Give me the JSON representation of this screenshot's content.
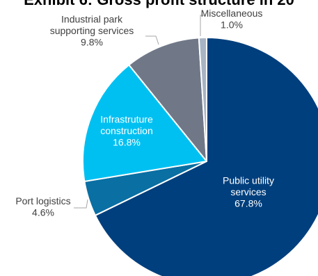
{
  "chart_data": {
    "type": "pie",
    "title": "Exhibit 6: Gross profit structure in 20",
    "legend": "none",
    "slices": [
      {
        "name": "Public utility services",
        "label_lines": [
          "Public utility",
          "services"
        ],
        "value": 67.8,
        "value_label": "67.8%",
        "color": "#003f7d",
        "text_color": "#ffffff",
        "label_position": "inside"
      },
      {
        "name": "Port logistics",
        "label_lines": [
          "Port logistics"
        ],
        "value": 4.6,
        "value_label": "4.6%",
        "color": "#0a6fa3",
        "text_color": "#404040",
        "label_position": "outside-left"
      },
      {
        "name": "Infrastruture construction",
        "label_lines": [
          "Infrastruture",
          "construction"
        ],
        "value": 16.8,
        "value_label": "16.8%",
        "color": "#00c0f2",
        "text_color": "#ffffff",
        "label_position": "inside"
      },
      {
        "name": "Industrial park supporting services",
        "label_lines": [
          "Industrial park",
          "supporting services"
        ],
        "value": 9.8,
        "value_label": "9.8%",
        "color": "#707888",
        "text_color": "#404040",
        "label_position": "outside-top"
      },
      {
        "name": "Miscellaneous",
        "label_lines": [
          "Miscellaneous"
        ],
        "value": 1.0,
        "value_label": "1.0%",
        "color": "#a8b3c4",
        "text_color": "#404040",
        "label_position": "outside-top"
      }
    ]
  }
}
